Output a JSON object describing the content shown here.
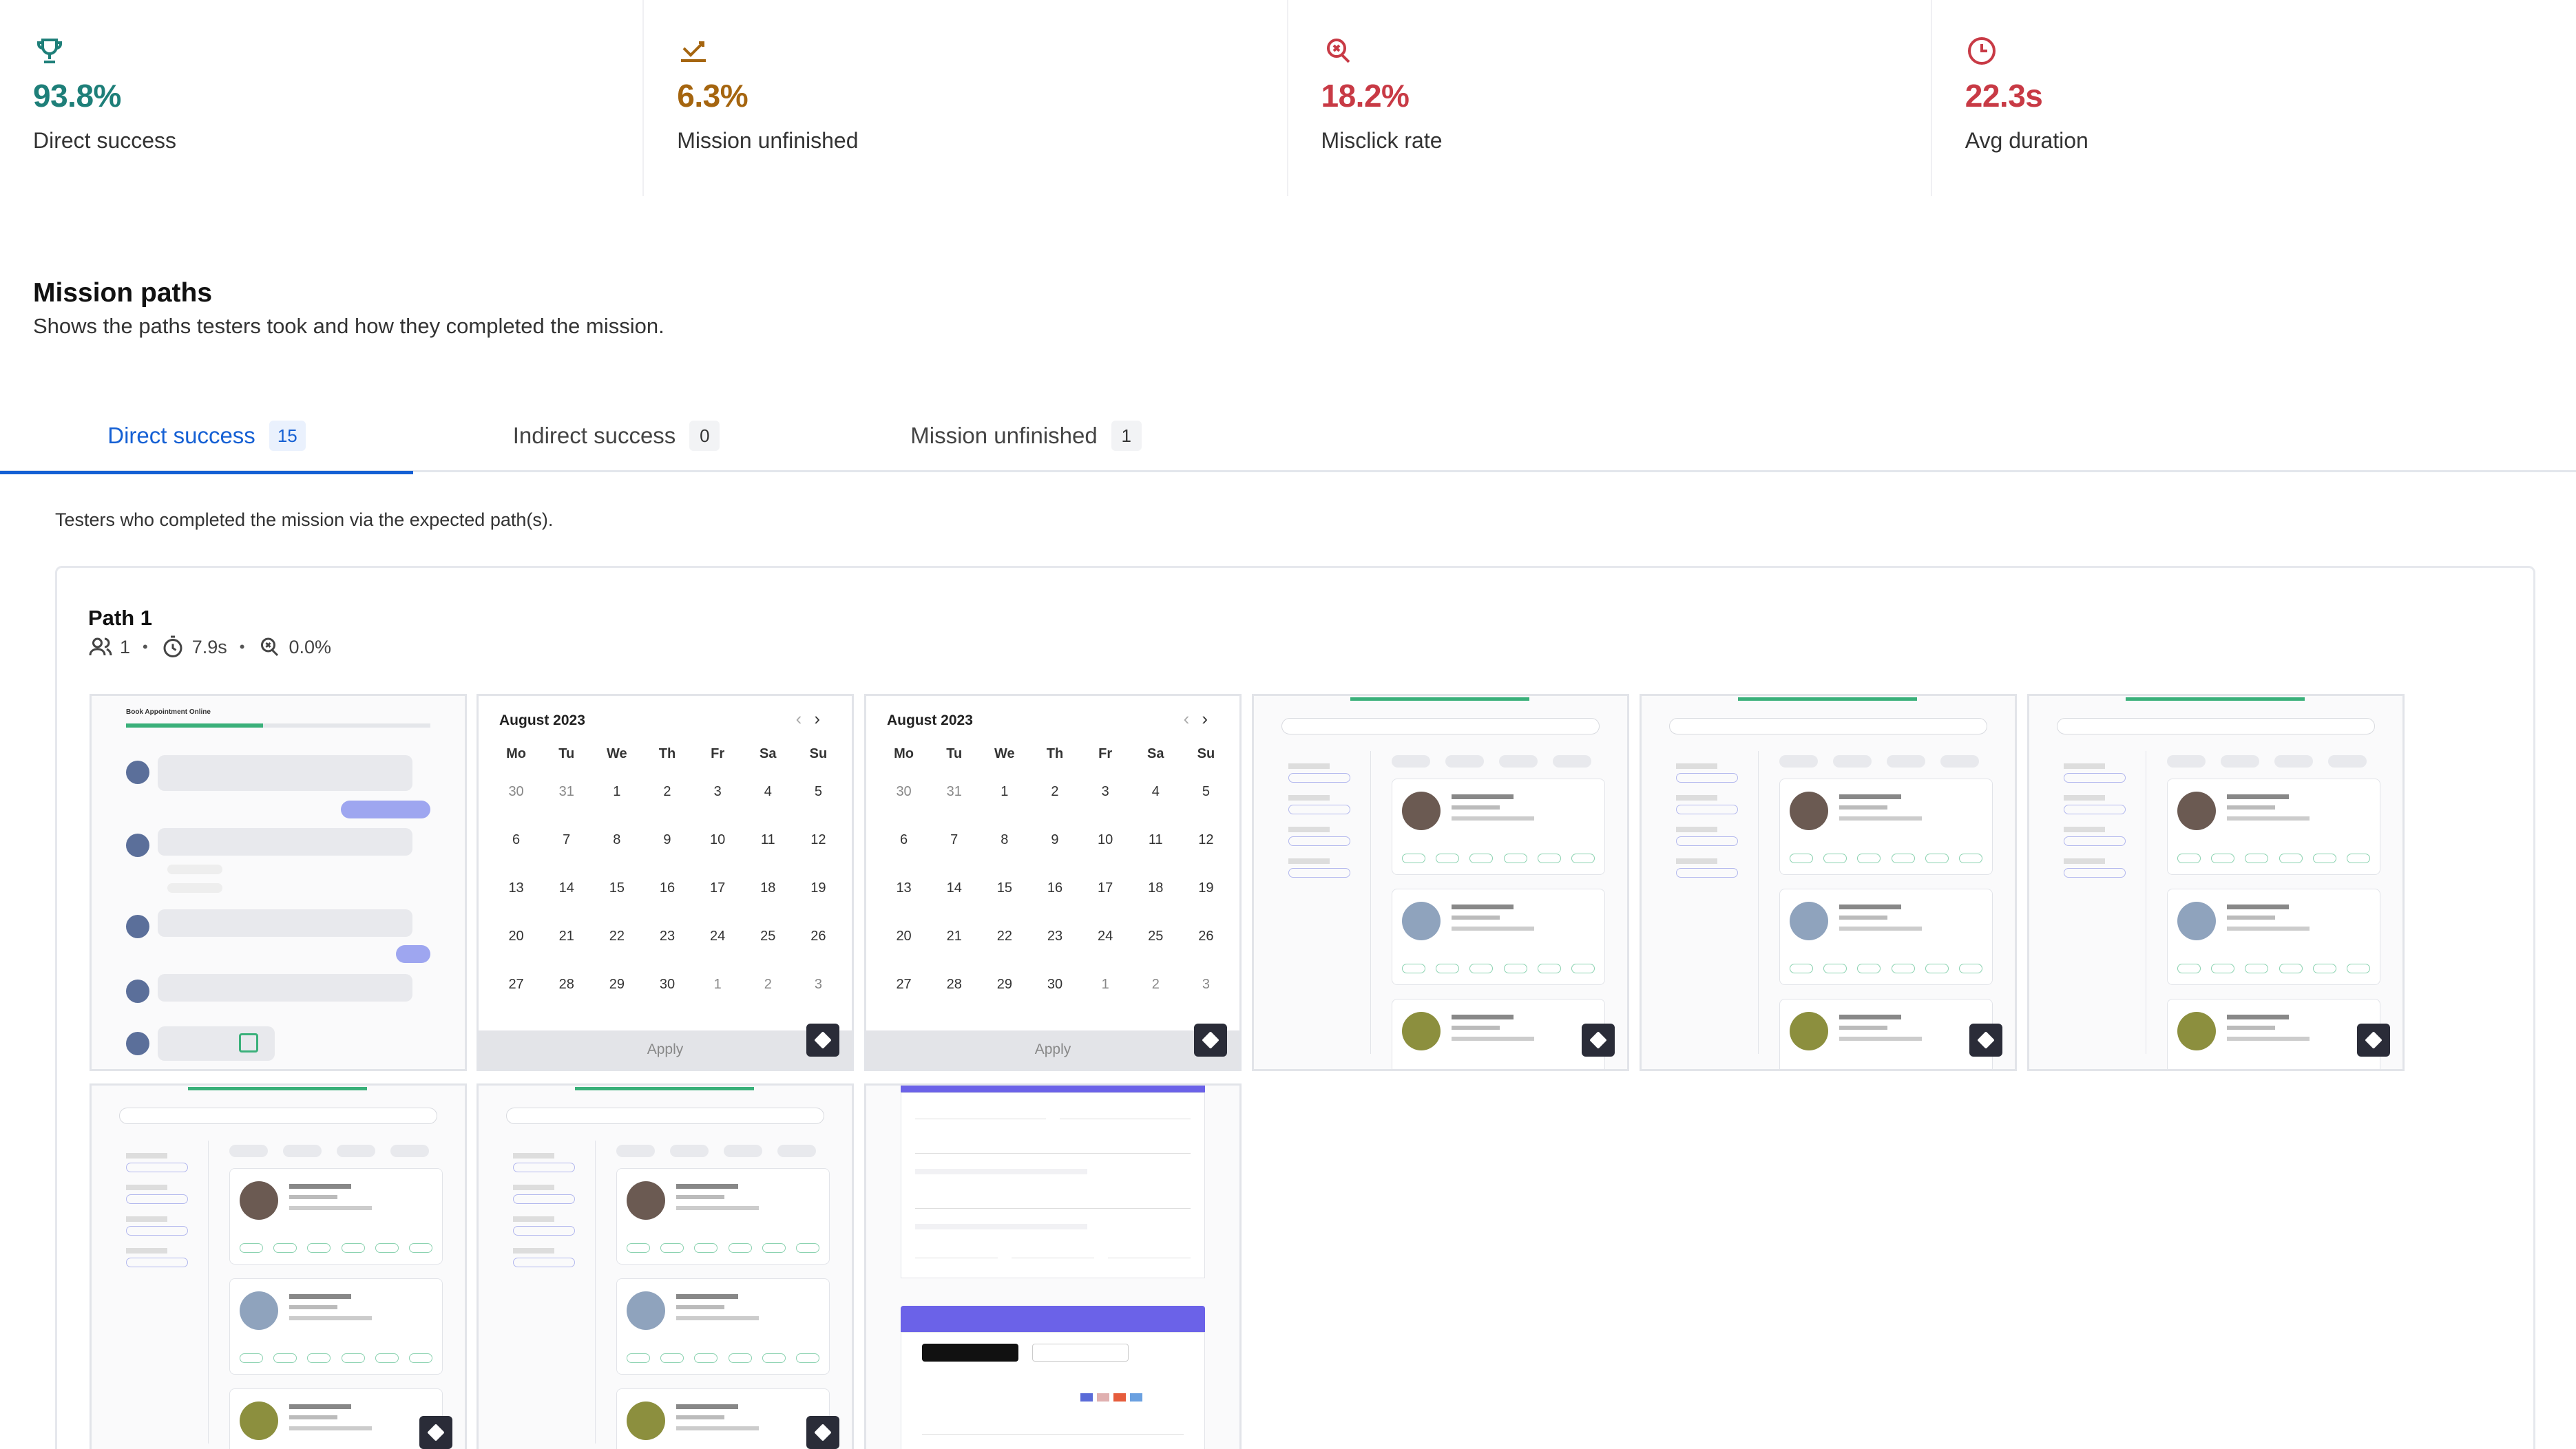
{
  "metrics": [
    {
      "id": "direct-success",
      "icon": "trophy-icon",
      "value": "93.8%",
      "label": "Direct success",
      "color": "#1e7f79"
    },
    {
      "id": "mission-unfinished",
      "icon": "give-up-icon",
      "value": "6.3%",
      "label": "Mission unfinished",
      "color": "#a5650f"
    },
    {
      "id": "misclick-rate",
      "icon": "misclick-icon",
      "value": "18.2%",
      "label": "Misclick rate",
      "color": "#c83a45"
    },
    {
      "id": "avg-duration",
      "icon": "clock-icon",
      "value": "22.3s",
      "label": "Avg duration",
      "color": "#c83a45"
    }
  ],
  "section": {
    "title": "Mission paths",
    "subtitle": "Shows the paths testers took and how they completed the mission."
  },
  "tabs": [
    {
      "label": "Direct success",
      "count": "15",
      "active": true
    },
    {
      "label": "Indirect success",
      "count": "0",
      "active": false
    },
    {
      "label": "Mission unfinished",
      "count": "1",
      "active": false
    }
  ],
  "tab_description": "Testers who completed the mission via the expected path(s).",
  "path": {
    "title": "Path 1",
    "testers": "1",
    "duration": "7.9s",
    "misclick": "0.0%"
  },
  "screens": {
    "chat": {
      "title": "Book Appointment Online"
    },
    "calendar": {
      "month": "August 2023",
      "apply_label": "Apply",
      "weekdays": [
        "Mo",
        "Tu",
        "We",
        "Th",
        "Fr",
        "Sa",
        "Su"
      ],
      "days": [
        "30",
        "31",
        "1",
        "2",
        "3",
        "4",
        "5",
        "6",
        "7",
        "8",
        "9",
        "10",
        "11",
        "12",
        "13",
        "14",
        "15",
        "16",
        "17",
        "18",
        "19",
        "20",
        "21",
        "22",
        "23",
        "24",
        "25",
        "26",
        "27",
        "28",
        "29",
        "30",
        "1",
        "2",
        "3"
      ]
    }
  },
  "colors": {
    "accent": "#1560d4",
    "success_green": "#3ab07a",
    "form_purple": "#6b62e8"
  }
}
